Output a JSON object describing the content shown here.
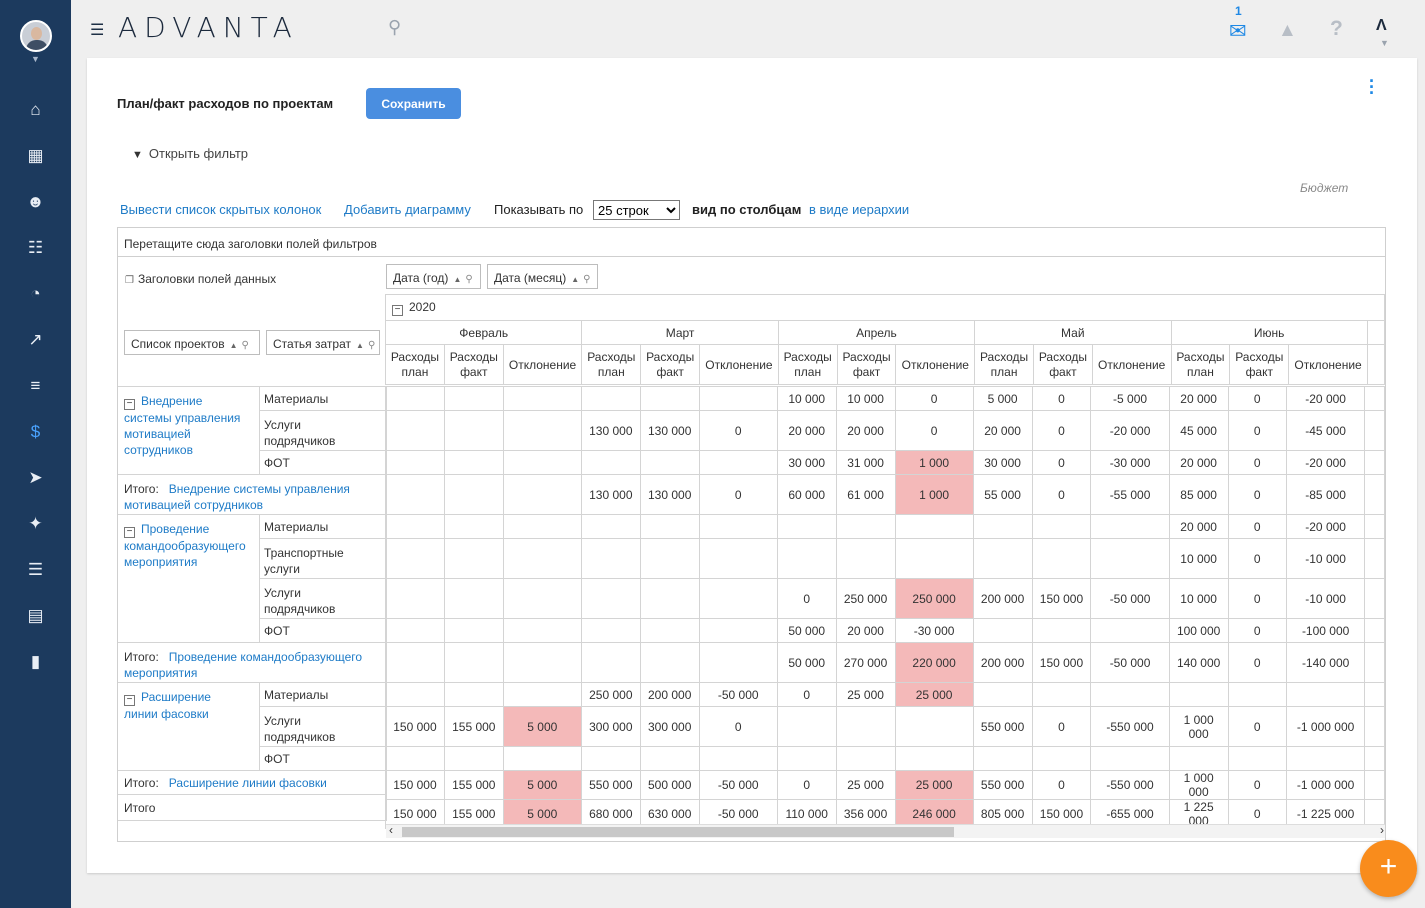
{
  "header": {
    "logo": "ADVANTA",
    "mail_count": "1"
  },
  "page": {
    "title": "План/факт расходов по проектам",
    "save_label": "Сохранить",
    "filter_label": "Открыть фильтр",
    "budget_label": "Бюджет"
  },
  "toolbar": {
    "hidden_columns": "Вывести список скрытых колонок",
    "add_chart": "Добавить диаграмму",
    "show_by": "Показывать по",
    "rows_selected": "25 строк",
    "by_columns": "вид по столбцам",
    "as_hierarchy": "в виде иерархии"
  },
  "pivot": {
    "drop_filters": "Перетащите сюда заголовки полей фильтров",
    "data_headers": "Заголовки полей данных",
    "fields": {
      "year": "Дата (год)",
      "month": "Дата (месяц)",
      "projects": "Список проектов",
      "cost_item": "Статья затрат"
    },
    "year": "2020",
    "months": [
      "Февраль",
      "Март",
      "Апрель",
      "Май",
      "Июнь"
    ],
    "measures": {
      "plan": [
        "Расходы",
        "план"
      ],
      "fact": [
        "Расходы",
        "факт"
      ],
      "dev": "Отклонение"
    },
    "total_prefix": "Итого:",
    "grand_total": "Итого",
    "projects": [
      {
        "name_lines": [
          "Внедрение",
          "системы управления",
          "мотивацией",
          "сотрудников"
        ],
        "total_name": [
          "Внедрение системы управления",
          "мотивацией сотрудников"
        ],
        "items": [
          {
            "name": [
              "Материалы"
            ],
            "values": [
              "",
              "",
              "",
              "",
              "",
              "",
              "10 000",
              "10 000",
              "0",
              "5 000",
              "0",
              "-5 000",
              "20 000",
              "0",
              "-20 000"
            ]
          },
          {
            "name": [
              "Услуги",
              "подрядчиков"
            ],
            "values": [
              "",
              "",
              "",
              "130 000",
              "130 000",
              "0",
              "20 000",
              "20 000",
              "0",
              "20 000",
              "0",
              "-20 000",
              "45 000",
              "0",
              "-45 000"
            ]
          },
          {
            "name": [
              "ФОТ"
            ],
            "values": [
              "",
              "",
              "",
              "",
              "",
              "",
              "30 000",
              "31 000",
              "1 000",
              "30 000",
              "0",
              "-30 000",
              "20 000",
              "0",
              "-20 000"
            ]
          }
        ],
        "total": [
          "",
          "",
          "",
          "130 000",
          "130 000",
          "0",
          "60 000",
          "61 000",
          "1 000",
          "55 000",
          "0",
          "-55 000",
          "85 000",
          "0",
          "-85 000"
        ]
      },
      {
        "name_lines": [
          "Проведение",
          "командообразующего",
          "мероприятия"
        ],
        "total_name": [
          "Проведение командообразующего",
          "мероприятия"
        ],
        "items": [
          {
            "name": [
              "Материалы"
            ],
            "values": [
              "",
              "",
              "",
              "",
              "",
              "",
              "",
              "",
              "",
              "",
              "",
              "",
              "20 000",
              "0",
              "-20 000"
            ]
          },
          {
            "name": [
              "Транспортные",
              "услуги"
            ],
            "values": [
              "",
              "",
              "",
              "",
              "",
              "",
              "",
              "",
              "",
              "",
              "",
              "",
              "10 000",
              "0",
              "-10 000"
            ]
          },
          {
            "name": [
              "Услуги",
              "подрядчиков"
            ],
            "values": [
              "",
              "",
              "",
              "",
              "",
              "",
              "0",
              "250 000",
              "250 000",
              "200 000",
              "150 000",
              "-50 000",
              "10 000",
              "0",
              "-10 000"
            ]
          },
          {
            "name": [
              "ФОТ"
            ],
            "values": [
              "",
              "",
              "",
              "",
              "",
              "",
              "50 000",
              "20 000",
              "-30 000",
              "",
              "",
              "",
              "100 000",
              "0",
              "-100 000"
            ]
          }
        ],
        "total": [
          "",
          "",
          "",
          "",
          "",
          "",
          "50 000",
          "270 000",
          "220 000",
          "200 000",
          "150 000",
          "-50 000",
          "140 000",
          "0",
          "-140 000"
        ]
      },
      {
        "name_lines": [
          "Расширение",
          "линии фасовки"
        ],
        "total_name": [
          "Расширение линии фасовки"
        ],
        "items": [
          {
            "name": [
              "Материалы"
            ],
            "values": [
              "",
              "",
              "",
              "250 000",
              "200 000",
              "-50 000",
              "0",
              "25 000",
              "25 000",
              "",
              "",
              "",
              "",
              "",
              ""
            ]
          },
          {
            "name": [
              "Услуги",
              "подрядчиков"
            ],
            "values": [
              "150 000",
              "155 000",
              "5 000",
              "300 000",
              "300 000",
              "0",
              "",
              "",
              "",
              "550 000",
              "0",
              "-550 000",
              "1 000 000",
              "0",
              "-1 000 000"
            ]
          },
          {
            "name": [
              "ФОТ"
            ],
            "values": [
              "",
              "",
              "",
              "",
              "",
              "",
              "",
              "",
              "",
              "",
              "",
              "",
              "",
              "",
              ""
            ]
          }
        ],
        "total": [
          "150 000",
          "155 000",
          "5 000",
          "550 000",
          "500 000",
          "-50 000",
          "0",
          "25 000",
          "25 000",
          "550 000",
          "0",
          "-550 000",
          "1 000 000",
          "0",
          "-1 000 000"
        ]
      }
    ],
    "grand_total_values": [
      "150 000",
      "155 000",
      "5 000",
      "680 000",
      "630 000",
      "-50 000",
      "110 000",
      "356 000",
      "246 000",
      "805 000",
      "150 000",
      "-655 000",
      "1 225 000",
      "0",
      "-1 225 000"
    ],
    "highlight_color": "#f4b9b9"
  }
}
